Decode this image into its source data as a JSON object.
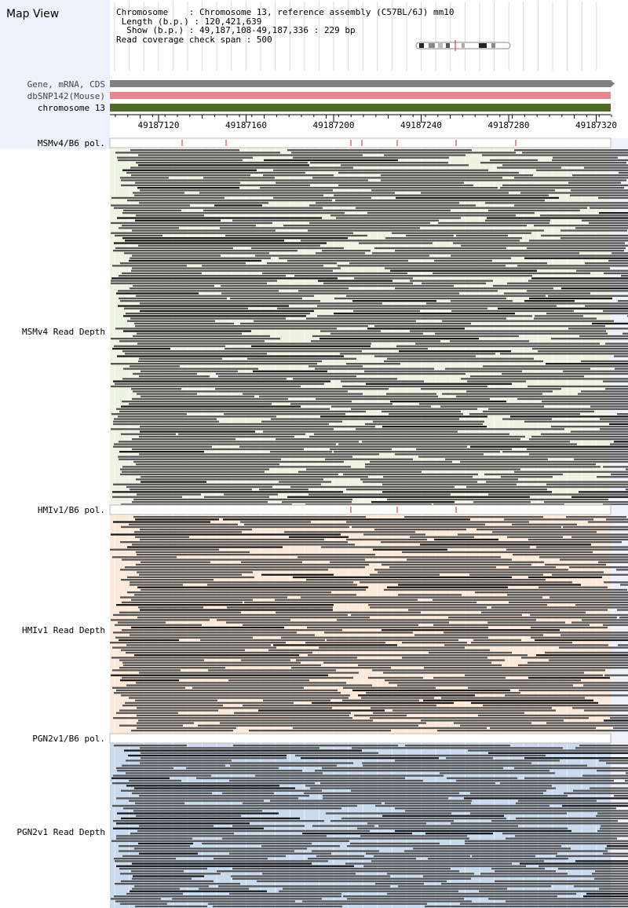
{
  "app": {
    "title": "Map View"
  },
  "info": {
    "chromosome_line": "Chromosome    : Chromosome 13, reference assembly (C57BL/6J) mm10",
    "length_line": " Length (b.p.) : 120,421,639",
    "show_line": "  Show (b.p.) : 49,187,108-49,187,336 : 229 bp",
    "coverage_line": "Read coverage check span : 500"
  },
  "tracks": {
    "gene_label": "Gene, mRNA, CDS",
    "snp_label": "dbSNP142(Mouse)",
    "chrom_label": "chromosome 13"
  },
  "ruler": {
    "ticks": [
      "49187120",
      "49187160",
      "49187200",
      "49187240",
      "49187280",
      "49187320"
    ]
  },
  "strains": [
    {
      "pol_label": "MSMv4/B6 pol.",
      "depth_label": "MSMv4 Read Depth",
      "bg": "#eef2e2"
    },
    {
      "pol_label": "HMIv1/B6 pol.",
      "depth_label": "HMIv1 Read Depth",
      "bg": "#fbe9da"
    },
    {
      "pol_label": "PGN2v1/B6 pol.",
      "depth_label": "PGN2v1 Read Depth",
      "bg": "#c9d9ee"
    }
  ],
  "colors": {
    "gene": "#808080",
    "snp": "#e8868e",
    "chrom": "#4e6b2a",
    "read": "#555555",
    "read_dark": "#1a1a1a",
    "snp_tick": "#cc2222"
  }
}
